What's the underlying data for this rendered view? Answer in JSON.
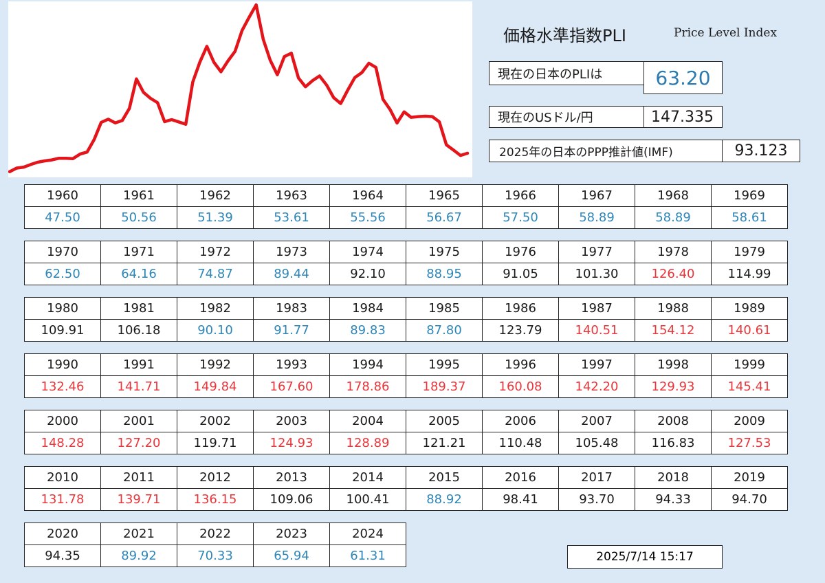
{
  "header": {
    "title_jp": "価格水準指数PLI",
    "title_en": "Price Level Index"
  },
  "info": {
    "current_pli_label": "現在の日本のPLIは",
    "current_pli_value": "63.20",
    "usd_jpy_label": "現在のUSドル/円",
    "usd_jpy_value": "147.335",
    "ppp_label": "2025年の日本のPPP推計値(IMF)",
    "ppp_value": "93.123"
  },
  "colors": {
    "blue": "#2e86b8",
    "red": "#e8363a",
    "black": "#1a1a1a",
    "background": "#dbe8f5",
    "line": "#e3151b"
  },
  "chart_data": {
    "type": "line",
    "title": "",
    "xlabel": "",
    "ylabel": "",
    "x": [
      1960,
      1961,
      1962,
      1963,
      1964,
      1965,
      1966,
      1967,
      1968,
      1969,
      1970,
      1971,
      1972,
      1973,
      1974,
      1975,
      1976,
      1977,
      1978,
      1979,
      1980,
      1981,
      1982,
      1983,
      1984,
      1985,
      1986,
      1987,
      1988,
      1989,
      1990,
      1991,
      1992,
      1993,
      1994,
      1995,
      1996,
      1997,
      1998,
      1999,
      2000,
      2001,
      2002,
      2003,
      2004,
      2005,
      2006,
      2007,
      2008,
      2009,
      2010,
      2011,
      2012,
      2013,
      2014,
      2015,
      2016,
      2017,
      2018,
      2019,
      2020,
      2021,
      2022,
      2023,
      2024,
      2025
    ],
    "values": [
      47.5,
      50.56,
      51.39,
      53.61,
      55.56,
      56.67,
      57.5,
      58.89,
      58.89,
      58.61,
      62.5,
      64.16,
      74.87,
      89.44,
      92.1,
      88.95,
      91.05,
      101.3,
      126.4,
      114.99,
      109.91,
      106.18,
      90.1,
      91.77,
      89.83,
      87.8,
      123.79,
      140.51,
      154.12,
      140.61,
      132.46,
      141.71,
      149.84,
      167.6,
      178.86,
      189.37,
      160.08,
      142.2,
      129.93,
      145.41,
      148.28,
      127.2,
      119.71,
      124.93,
      128.89,
      121.21,
      110.48,
      105.48,
      116.83,
      127.53,
      131.78,
      139.71,
      136.15,
      109.06,
      100.41,
      88.92,
      98.41,
      93.7,
      94.33,
      94.7,
      94.35,
      89.92,
      70.33,
      65.94,
      61.31,
      63.2
    ],
    "ylim": [
      45,
      190
    ],
    "grid": false,
    "legend": "none"
  },
  "rows": [
    {
      "years": [
        "1960",
        "1961",
        "1962",
        "1963",
        "1964",
        "1965",
        "1966",
        "1967",
        "1968",
        "1969"
      ],
      "values": [
        "47.50",
        "50.56",
        "51.39",
        "53.61",
        "55.56",
        "56.67",
        "57.50",
        "58.89",
        "58.89",
        "58.61"
      ],
      "colors": [
        "blue",
        "blue",
        "blue",
        "blue",
        "blue",
        "blue",
        "blue",
        "blue",
        "blue",
        "blue"
      ]
    },
    {
      "years": [
        "1970",
        "1971",
        "1972",
        "1973",
        "1974",
        "1975",
        "1976",
        "1977",
        "1978",
        "1979"
      ],
      "values": [
        "62.50",
        "64.16",
        "74.87",
        "89.44",
        "92.10",
        "88.95",
        "91.05",
        "101.30",
        "126.40",
        "114.99"
      ],
      "colors": [
        "blue",
        "blue",
        "blue",
        "blue",
        "black",
        "blue",
        "black",
        "black",
        "red",
        "black"
      ]
    },
    {
      "years": [
        "1980",
        "1981",
        "1982",
        "1983",
        "1984",
        "1985",
        "1986",
        "1987",
        "1988",
        "1989"
      ],
      "values": [
        "109.91",
        "106.18",
        "90.10",
        "91.77",
        "89.83",
        "87.80",
        "123.79",
        "140.51",
        "154.12",
        "140.61"
      ],
      "colors": [
        "black",
        "black",
        "blue",
        "blue",
        "blue",
        "blue",
        "black",
        "red",
        "red",
        "red"
      ]
    },
    {
      "years": [
        "1990",
        "1991",
        "1992",
        "1993",
        "1994",
        "1995",
        "1996",
        "1997",
        "1998",
        "1999"
      ],
      "values": [
        "132.46",
        "141.71",
        "149.84",
        "167.60",
        "178.86",
        "189.37",
        "160.08",
        "142.20",
        "129.93",
        "145.41"
      ],
      "colors": [
        "red",
        "red",
        "red",
        "red",
        "red",
        "red",
        "red",
        "red",
        "red",
        "red"
      ]
    },
    {
      "years": [
        "2000",
        "2001",
        "2002",
        "2003",
        "2004",
        "2005",
        "2006",
        "2007",
        "2008",
        "2009"
      ],
      "values": [
        "148.28",
        "127.20",
        "119.71",
        "124.93",
        "128.89",
        "121.21",
        "110.48",
        "105.48",
        "116.83",
        "127.53"
      ],
      "colors": [
        "red",
        "red",
        "black",
        "red",
        "red",
        "black",
        "black",
        "black",
        "black",
        "red"
      ]
    },
    {
      "years": [
        "2010",
        "2011",
        "2012",
        "2013",
        "2014",
        "2015",
        "2016",
        "2017",
        "2018",
        "2019"
      ],
      "values": [
        "131.78",
        "139.71",
        "136.15",
        "109.06",
        "100.41",
        "88.92",
        "98.41",
        "93.70",
        "94.33",
        "94.70"
      ],
      "colors": [
        "red",
        "red",
        "red",
        "black",
        "black",
        "blue",
        "black",
        "black",
        "black",
        "black"
      ]
    },
    {
      "years": [
        "2020",
        "2021",
        "2022",
        "2023",
        "2024"
      ],
      "values": [
        "94.35",
        "89.92",
        "70.33",
        "65.94",
        "61.31"
      ],
      "colors": [
        "black",
        "blue",
        "blue",
        "blue",
        "blue"
      ]
    }
  ],
  "timestamp": "2025/7/14 15:17"
}
